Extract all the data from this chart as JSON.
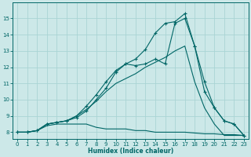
{
  "xlabel": "Humidex (Indice chaleur)",
  "bg_color": "#cce8e8",
  "grid_color": "#aad4d4",
  "line_color": "#006666",
  "xlim": [
    -0.5,
    23.5
  ],
  "ylim": [
    7.6,
    16.0
  ],
  "xticks": [
    0,
    1,
    2,
    3,
    4,
    5,
    6,
    7,
    8,
    9,
    10,
    11,
    12,
    13,
    14,
    15,
    16,
    17,
    18,
    19,
    20,
    21,
    22,
    23
  ],
  "yticks": [
    8,
    9,
    10,
    11,
    12,
    13,
    14,
    15
  ],
  "line1_x": [
    0,
    1,
    2,
    3,
    4,
    5,
    6,
    7,
    8,
    9,
    10,
    11,
    12,
    13,
    14,
    15,
    16,
    17,
    18,
    19,
    20,
    21,
    22,
    23
  ],
  "line1_y": [
    8.0,
    8.0,
    8.1,
    8.4,
    8.5,
    8.5,
    8.5,
    8.5,
    8.3,
    8.2,
    8.2,
    8.2,
    8.1,
    8.1,
    8.0,
    8.0,
    8.0,
    8.0,
    7.95,
    7.9,
    7.9,
    7.85,
    7.85,
    7.8
  ],
  "line2_x": [
    0,
    1,
    2,
    3,
    4,
    5,
    6,
    7,
    8,
    9,
    10,
    11,
    12,
    13,
    14,
    15,
    16,
    17,
    18,
    19,
    20,
    21,
    22,
    23
  ],
  "line2_y": [
    8.0,
    8.0,
    8.1,
    8.5,
    8.6,
    8.7,
    9.0,
    9.4,
    9.9,
    10.5,
    11.0,
    11.3,
    11.6,
    12.0,
    12.3,
    12.6,
    13.0,
    13.3,
    11.1,
    9.5,
    8.5,
    7.8,
    7.8,
    7.8
  ],
  "line3_x": [
    0,
    1,
    2,
    3,
    4,
    5,
    6,
    7,
    8,
    9,
    10,
    11,
    12,
    13,
    14,
    15,
    16,
    17,
    18,
    19,
    20,
    21,
    22,
    23
  ],
  "line3_y": [
    8.0,
    8.0,
    8.1,
    8.5,
    8.6,
    8.7,
    8.9,
    9.3,
    10.0,
    10.7,
    11.7,
    12.2,
    12.1,
    12.2,
    12.5,
    12.2,
    14.7,
    15.0,
    13.3,
    11.1,
    9.5,
    8.7,
    8.5,
    7.8
  ],
  "line4_x": [
    0,
    1,
    2,
    3,
    4,
    5,
    6,
    7,
    8,
    9,
    10,
    11,
    12,
    13,
    14,
    15,
    16,
    17,
    18,
    19,
    20,
    21,
    22,
    23
  ],
  "line4_y": [
    8.0,
    8.0,
    8.1,
    8.5,
    8.6,
    8.7,
    9.0,
    9.6,
    10.3,
    11.1,
    11.8,
    12.2,
    12.5,
    13.1,
    14.1,
    14.7,
    14.8,
    15.3,
    13.3,
    10.5,
    9.5,
    8.7,
    8.5,
    7.8
  ]
}
